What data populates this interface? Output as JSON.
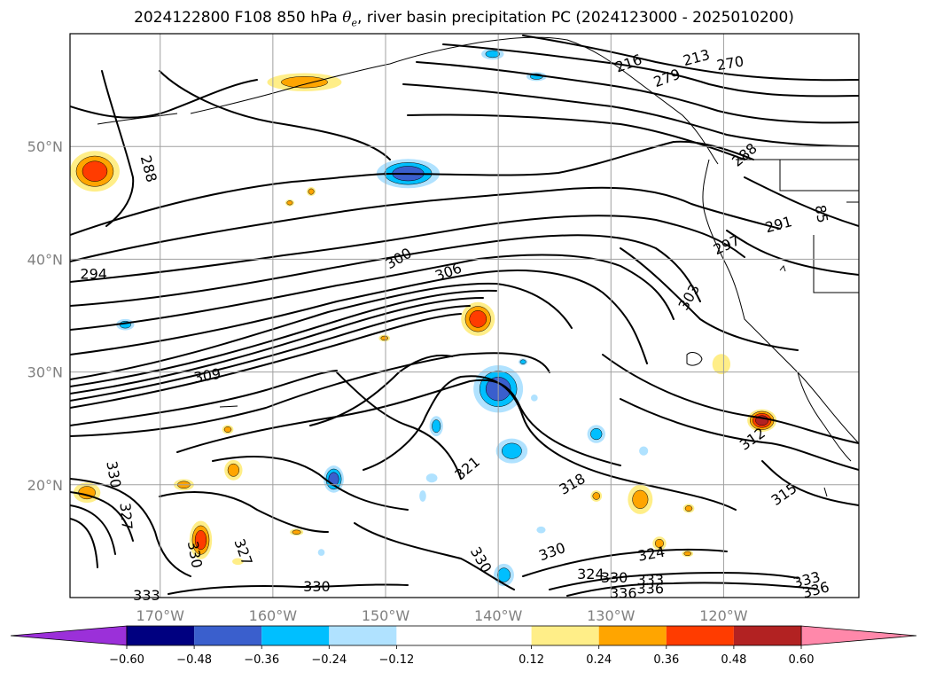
{
  "title": {
    "prefix": "2024122800 F108 850 hPa ",
    "symbol": "θ",
    "subscript": "e",
    "suffix": ", river basin precipitation PC (2024123000 - 2025010200)"
  },
  "chart_data": {
    "type": "map",
    "projection": "cylindrical",
    "lon_range": [
      -178,
      -108
    ],
    "lat_range": [
      10,
      60
    ],
    "lat_ticks": [
      {
        "value": 50,
        "label": "50°N"
      },
      {
        "value": 40,
        "label": "40°N"
      },
      {
        "value": 30,
        "label": "30°N"
      },
      {
        "value": 20,
        "label": "20°N"
      }
    ],
    "lon_ticks": [
      {
        "value": -170,
        "label": "170°W"
      },
      {
        "value": -160,
        "label": "160°W"
      },
      {
        "value": -150,
        "label": "150°W"
      },
      {
        "value": -140,
        "label": "140°W"
      },
      {
        "value": -130,
        "label": "130°W"
      },
      {
        "value": -120,
        "label": "120°W"
      }
    ],
    "grid": true,
    "contour_field": "850 hPa theta-e (K)",
    "contour_labels": [
      {
        "text": "288",
        "lon": -171.1,
        "lat": 48.0,
        "rot": 75
      },
      {
        "text": "294",
        "lon": -175.9,
        "lat": 38.6,
        "rot": 0
      },
      {
        "text": "300",
        "lon": -148.8,
        "lat": 40.0,
        "rot": -30
      },
      {
        "text": "306",
        "lon": -144.4,
        "lat": 38.8,
        "rot": -20
      },
      {
        "text": "309",
        "lon": -165.8,
        "lat": 29.6,
        "rot": -10
      },
      {
        "text": "216",
        "lon": -128.4,
        "lat": 57.3,
        "rot": -20
      },
      {
        "text": "279",
        "lon": -125.0,
        "lat": 56.0,
        "rot": -20
      },
      {
        "text": "213",
        "lon": -122.4,
        "lat": 57.8,
        "rot": -15
      },
      {
        "text": "270",
        "lon": -119.4,
        "lat": 57.3,
        "rot": -10
      },
      {
        "text": "288",
        "lon": -118.1,
        "lat": 49.2,
        "rot": -40
      },
      {
        "text": "291",
        "lon": -115.1,
        "lat": 43.0,
        "rot": -15
      },
      {
        "text": "85",
        "lon": -111.4,
        "lat": 44.0,
        "rot": 80
      },
      {
        "text": "297",
        "lon": -119.7,
        "lat": 41.2,
        "rot": -25
      },
      {
        "text": "303",
        "lon": -123.0,
        "lat": 36.6,
        "rot": -60
      },
      {
        "text": "321",
        "lon": -142.7,
        "lat": 21.4,
        "rot": -40
      },
      {
        "text": "318",
        "lon": -133.4,
        "lat": 20.0,
        "rot": -30
      },
      {
        "text": "312",
        "lon": -117.4,
        "lat": 24.0,
        "rot": -35
      },
      {
        "text": "315",
        "lon": -114.6,
        "lat": 19.1,
        "rot": -35
      },
      {
        "text": "330",
        "lon": -174.2,
        "lat": 20.9,
        "rot": 80
      },
      {
        "text": "327",
        "lon": -173.1,
        "lat": 17.2,
        "rot": 85
      },
      {
        "text": "330",
        "lon": -167.0,
        "lat": 13.8,
        "rot": 80
      },
      {
        "text": "327",
        "lon": -162.7,
        "lat": 14.0,
        "rot": 70
      },
      {
        "text": "333",
        "lon": -171.2,
        "lat": 10.1,
        "rot": 0
      },
      {
        "text": "330",
        "lon": -156.1,
        "lat": 10.9,
        "rot": 0
      },
      {
        "text": "330",
        "lon": -141.6,
        "lat": 13.3,
        "rot": 60
      },
      {
        "text": "330",
        "lon": -135.2,
        "lat": 14.0,
        "rot": -20
      },
      {
        "text": "324",
        "lon": -131.8,
        "lat": 12.0,
        "rot": 0
      },
      {
        "text": "330",
        "lon": -129.7,
        "lat": 11.7,
        "rot": 0
      },
      {
        "text": "324",
        "lon": -126.4,
        "lat": 13.8,
        "rot": -10
      },
      {
        "text": "336",
        "lon": -128.9,
        "lat": 10.3,
        "rot": 0
      },
      {
        "text": "333",
        "lon": -126.5,
        "lat": 11.5,
        "rot": 0
      },
      {
        "text": "336",
        "lon": -126.5,
        "lat": 10.7,
        "rot": 0
      },
      {
        "text": "333",
        "lon": -112.6,
        "lat": 11.5,
        "rot": -15
      },
      {
        "text": "336",
        "lon": -111.8,
        "lat": 10.6,
        "rot": -15
      }
    ],
    "colorbar": {
      "boundaries": [
        -0.72,
        -0.6,
        -0.48,
        -0.36,
        -0.24,
        -0.12,
        0.12,
        0.24,
        0.36,
        0.48,
        0.6,
        0.72
      ],
      "colors": [
        "#9b30d9",
        "#000080",
        "#3a5fcd",
        "#00bfff",
        "#b0e2ff",
        "#ffffff",
        "#ffee88",
        "#ffa500",
        "#ff3c00",
        "#b22222",
        "#ff88aa"
      ],
      "ticks": [
        {
          "value": -0.6,
          "label": "−0.60"
        },
        {
          "value": -0.48,
          "label": "−0.48"
        },
        {
          "value": -0.36,
          "label": "−0.36"
        },
        {
          "value": -0.24,
          "label": "−0.24"
        },
        {
          "value": -0.12,
          "label": "−0.12"
        },
        {
          "value": 0.12,
          "label": "0.12"
        },
        {
          "value": 0.24,
          "label": "0.24"
        },
        {
          "value": 0.36,
          "label": "0.36"
        },
        {
          "value": 0.48,
          "label": "0.48"
        },
        {
          "value": 0.6,
          "label": "0.60"
        }
      ],
      "extend": "both",
      "orientation": "horizontal"
    },
    "shaded_blobs": [
      {
        "lon": -175.8,
        "lat": 47.8,
        "rx": 2.2,
        "ry": 1.8,
        "colors": [
          "#ffee88",
          "#ffa500",
          "#ff3c00"
        ]
      },
      {
        "lon": -157.2,
        "lat": 55.7,
        "rx": 3.3,
        "ry": 0.8,
        "colors": [
          "#ffee88",
          "#ffa500"
        ]
      },
      {
        "lon": -148.0,
        "lat": 47.6,
        "rx": 2.8,
        "ry": 1.3,
        "colors": [
          "#b0e2ff",
          "#00bfff",
          "#3a5fcd"
        ]
      },
      {
        "lon": -140.5,
        "lat": 58.2,
        "rx": 1.0,
        "ry": 0.5,
        "colors": [
          "#b0e2ff",
          "#00bfff"
        ]
      },
      {
        "lon": -136.6,
        "lat": 56.2,
        "rx": 0.9,
        "ry": 0.4,
        "colors": [
          "#b0e2ff",
          "#00bfff"
        ]
      },
      {
        "lon": -156.6,
        "lat": 46.0,
        "rx": 0.4,
        "ry": 0.4,
        "colors": [
          "#ffee88",
          "#ffa500"
        ]
      },
      {
        "lon": -158.5,
        "lat": 45.0,
        "rx": 0.4,
        "ry": 0.3,
        "colors": [
          "#ffee88",
          "#ffa500"
        ]
      },
      {
        "lon": -173.1,
        "lat": 34.2,
        "rx": 0.8,
        "ry": 0.5,
        "colors": [
          "#b0e2ff",
          "#00bfff"
        ]
      },
      {
        "lon": -141.8,
        "lat": 34.7,
        "rx": 1.5,
        "ry": 1.5,
        "colors": [
          "#ffee88",
          "#ffa500",
          "#ff3c00"
        ]
      },
      {
        "lon": -150.1,
        "lat": 33.0,
        "rx": 0.5,
        "ry": 0.3,
        "colors": [
          "#ffee88",
          "#ffa500"
        ]
      },
      {
        "lon": -140.0,
        "lat": 28.5,
        "rx": 2.2,
        "ry": 2.1,
        "colors": [
          "#b0e2ff",
          "#00bfff",
          "#3a5fcd"
        ]
      },
      {
        "lon": -137.8,
        "lat": 30.9,
        "rx": 0.4,
        "ry": 0.3,
        "colors": [
          "#b0e2ff",
          "#00bfff"
        ]
      },
      {
        "lon": -145.5,
        "lat": 25.2,
        "rx": 0.6,
        "ry": 0.9,
        "colors": [
          "#b0e2ff",
          "#00bfff"
        ]
      },
      {
        "lon": -138.8,
        "lat": 23.0,
        "rx": 1.4,
        "ry": 1.1,
        "colors": [
          "#b0e2ff",
          "#00bfff"
        ]
      },
      {
        "lon": -136.8,
        "lat": 27.7,
        "rx": 0.3,
        "ry": 0.3,
        "colors": [
          "#b0e2ff"
        ]
      },
      {
        "lon": -131.3,
        "lat": 24.5,
        "rx": 0.8,
        "ry": 0.8,
        "colors": [
          "#b0e2ff",
          "#00bfff"
        ]
      },
      {
        "lon": -127.1,
        "lat": 23.0,
        "rx": 0.4,
        "ry": 0.4,
        "colors": [
          "#b0e2ff"
        ]
      },
      {
        "lon": -164.0,
        "lat": 24.9,
        "rx": 0.5,
        "ry": 0.4,
        "colors": [
          "#ffee88",
          "#ffa500"
        ]
      },
      {
        "lon": -163.5,
        "lat": 21.3,
        "rx": 0.8,
        "ry": 0.9,
        "colors": [
          "#ffee88",
          "#ffa500"
        ]
      },
      {
        "lon": -154.6,
        "lat": 20.5,
        "rx": 0.9,
        "ry": 1.2,
        "colors": [
          "#b0e2ff",
          "#00bfff",
          "#3a5fcd"
        ]
      },
      {
        "lon": -145.9,
        "lat": 20.6,
        "rx": 0.5,
        "ry": 0.4,
        "colors": [
          "#b0e2ff"
        ]
      },
      {
        "lon": -146.7,
        "lat": 19.0,
        "rx": 0.3,
        "ry": 0.5,
        "colors": [
          "#b0e2ff"
        ]
      },
      {
        "lon": -176.5,
        "lat": 19.3,
        "rx": 1.2,
        "ry": 0.9,
        "colors": [
          "#ffee88",
          "#ffa500"
        ]
      },
      {
        "lon": -167.9,
        "lat": 20.0,
        "rx": 0.9,
        "ry": 0.5,
        "colors": [
          "#ffee88",
          "#ffa500"
        ]
      },
      {
        "lon": -166.4,
        "lat": 15.1,
        "rx": 1.0,
        "ry": 1.7,
        "colors": [
          "#ffee88",
          "#ffa500",
          "#ff3c00"
        ]
      },
      {
        "lon": -163.1,
        "lat": 13.2,
        "rx": 0.5,
        "ry": 0.3,
        "colors": [
          "#ffee88"
        ]
      },
      {
        "lon": -157.9,
        "lat": 15.8,
        "rx": 0.6,
        "ry": 0.3,
        "colors": [
          "#ffee88",
          "#ffa500"
        ]
      },
      {
        "lon": -155.7,
        "lat": 14.0,
        "rx": 0.3,
        "ry": 0.3,
        "colors": [
          "#b0e2ff"
        ]
      },
      {
        "lon": -139.5,
        "lat": 12.0,
        "rx": 0.9,
        "ry": 1.0,
        "colors": [
          "#b0e2ff",
          "#00bfff"
        ]
      },
      {
        "lon": -131.3,
        "lat": 19.0,
        "rx": 0.5,
        "ry": 0.5,
        "colors": [
          "#ffee88",
          "#ffa500"
        ]
      },
      {
        "lon": -127.4,
        "lat": 18.7,
        "rx": 1.1,
        "ry": 1.3,
        "colors": [
          "#ffee88",
          "#ffa500"
        ]
      },
      {
        "lon": -123.1,
        "lat": 17.9,
        "rx": 0.5,
        "ry": 0.4,
        "colors": [
          "#ffee88",
          "#ffa500"
        ]
      },
      {
        "lon": -136.2,
        "lat": 16.0,
        "rx": 0.4,
        "ry": 0.3,
        "colors": [
          "#b0e2ff"
        ]
      },
      {
        "lon": -125.7,
        "lat": 14.8,
        "rx": 0.6,
        "ry": 0.6,
        "colors": [
          "#ffee88",
          "#ffa500"
        ]
      },
      {
        "lon": -123.2,
        "lat": 13.9,
        "rx": 0.5,
        "ry": 0.3,
        "colors": [
          "#ffee88",
          "#ffa500"
        ]
      },
      {
        "lon": -120.2,
        "lat": 30.7,
        "rx": 0.8,
        "ry": 0.9,
        "colors": [
          "#ffee88"
        ]
      },
      {
        "lon": -116.6,
        "lat": 25.7,
        "rx": 1.3,
        "ry": 1.0,
        "colors": [
          "#ffee88",
          "#ffa500",
          "#ff3c00",
          "#b22222"
        ]
      }
    ]
  }
}
